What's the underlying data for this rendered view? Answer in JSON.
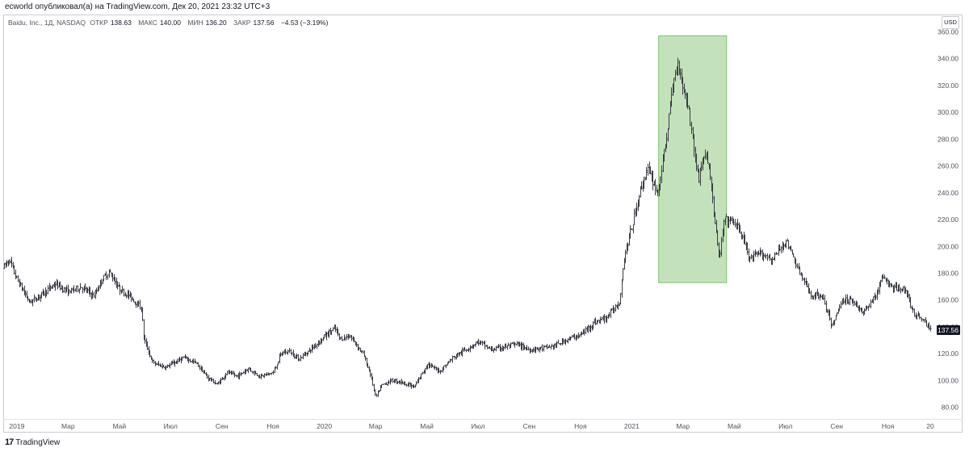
{
  "header": {
    "publish_line": "ecworld опубликовал(а) на TradingView.com, Дек 20, 2021 23:32 UTC+3"
  },
  "legend": {
    "symbol": "Baidu, Inc., 1Д, NASDAQ",
    "open_label": "ОТКР",
    "open_value": "138.63",
    "high_label": "МАКС",
    "high_value": "140.00",
    "low_label": "МИН",
    "low_value": "136.20",
    "close_label": "ЗАКР",
    "close_value": "137.56",
    "change": "−4.53 (−3.19%)"
  },
  "currency": "USD",
  "footer": {
    "logo_icon": "tradingview-logo-icon",
    "brand": "TradingView"
  },
  "colors": {
    "bar": "#3a3d45",
    "highlight_fill": "#b9ddb0",
    "highlight_stroke": "#7cbf6c",
    "last_price_bg": "#131722",
    "last_price_text": "#ffffff",
    "axis_text": "#50535e"
  },
  "chart_data": {
    "type": "ohlc",
    "title": "Baidu, Inc., 1Д, NASDAQ",
    "ylim": [
      72,
      362
    ],
    "y_ticks": [
      "80.00",
      "100.00",
      "120.00",
      "140.00",
      "160.00",
      "180.00",
      "200.00",
      "220.00",
      "240.00",
      "260.00",
      "280.00",
      "300.00",
      "320.00",
      "340.00",
      "360.00"
    ],
    "x_ticks": [
      {
        "label": "2019",
        "month": 0
      },
      {
        "label": "Мар",
        "month": 2
      },
      {
        "label": "Май",
        "month": 4
      },
      {
        "label": "Июл",
        "month": 6
      },
      {
        "label": "Сен",
        "month": 8
      },
      {
        "label": "Ноя",
        "month": 10
      },
      {
        "label": "2020",
        "month": 12
      },
      {
        "label": "Мар",
        "month": 14
      },
      {
        "label": "Май",
        "month": 16
      },
      {
        "label": "Июл",
        "month": 18
      },
      {
        "label": "Сен",
        "month": 20
      },
      {
        "label": "Ноя",
        "month": 22
      },
      {
        "label": "2021",
        "month": 24
      },
      {
        "label": "Мар",
        "month": 26
      },
      {
        "label": "Май",
        "month": 28
      },
      {
        "label": "Июл",
        "month": 30
      },
      {
        "label": "Сен",
        "month": 32
      },
      {
        "label": "Ноя",
        "month": 34
      },
      {
        "label": "20",
        "month": 35.65
      }
    ],
    "x_range_months": [
      -0.5,
      35.65
    ],
    "price_path": [
      {
        "month": -0.5,
        "price": 185
      },
      {
        "month": -0.3,
        "price": 190
      },
      {
        "month": 0.0,
        "price": 175
      },
      {
        "month": 0.5,
        "price": 158
      },
      {
        "month": 1.0,
        "price": 165
      },
      {
        "month": 1.5,
        "price": 172
      },
      {
        "month": 2.0,
        "price": 166
      },
      {
        "month": 2.5,
        "price": 170
      },
      {
        "month": 3.0,
        "price": 163
      },
      {
        "month": 3.3,
        "price": 175
      },
      {
        "month": 3.6,
        "price": 181
      },
      {
        "month": 4.0,
        "price": 168
      },
      {
        "month": 4.4,
        "price": 163
      },
      {
        "month": 4.7,
        "price": 157
      },
      {
        "month": 4.85,
        "price": 154
      },
      {
        "month": 4.95,
        "price": 131
      },
      {
        "month": 5.3,
        "price": 113
      },
      {
        "month": 5.8,
        "price": 110
      },
      {
        "month": 6.5,
        "price": 117
      },
      {
        "month": 7.0,
        "price": 113
      },
      {
        "month": 7.4,
        "price": 103
      },
      {
        "month": 7.8,
        "price": 97
      },
      {
        "month": 8.2,
        "price": 106
      },
      {
        "month": 8.6,
        "price": 103
      },
      {
        "month": 9.0,
        "price": 109
      },
      {
        "month": 9.5,
        "price": 103
      },
      {
        "month": 10.0,
        "price": 106
      },
      {
        "month": 10.3,
        "price": 120
      },
      {
        "month": 10.6,
        "price": 122
      },
      {
        "month": 11.0,
        "price": 116
      },
      {
        "month": 11.5,
        "price": 124
      },
      {
        "month": 12.0,
        "price": 133
      },
      {
        "month": 12.4,
        "price": 139
      },
      {
        "month": 12.6,
        "price": 131
      },
      {
        "month": 13.0,
        "price": 133
      },
      {
        "month": 13.5,
        "price": 120
      },
      {
        "month": 13.8,
        "price": 104
      },
      {
        "month": 14.0,
        "price": 87
      },
      {
        "month": 14.2,
        "price": 96
      },
      {
        "month": 14.6,
        "price": 100
      },
      {
        "month": 15.0,
        "price": 99
      },
      {
        "month": 15.5,
        "price": 95
      },
      {
        "month": 16.0,
        "price": 112
      },
      {
        "month": 16.5,
        "price": 107
      },
      {
        "month": 17.0,
        "price": 117
      },
      {
        "month": 17.5,
        "price": 123
      },
      {
        "month": 18.0,
        "price": 129
      },
      {
        "month": 18.5,
        "price": 123
      },
      {
        "month": 19.0,
        "price": 125
      },
      {
        "month": 19.5,
        "price": 127
      },
      {
        "month": 20.0,
        "price": 123
      },
      {
        "month": 20.5,
        "price": 124
      },
      {
        "month": 21.0,
        "price": 126
      },
      {
        "month": 21.5,
        "price": 131
      },
      {
        "month": 22.0,
        "price": 134
      },
      {
        "month": 22.5,
        "price": 143
      },
      {
        "month": 23.0,
        "price": 147
      },
      {
        "month": 23.5,
        "price": 158
      },
      {
        "month": 23.7,
        "price": 192
      },
      {
        "month": 24.0,
        "price": 215
      },
      {
        "month": 24.3,
        "price": 240
      },
      {
        "month": 24.6,
        "price": 258
      },
      {
        "month": 25.0,
        "price": 240
      },
      {
        "month": 25.2,
        "price": 262
      },
      {
        "month": 25.4,
        "price": 290
      },
      {
        "month": 25.6,
        "price": 320
      },
      {
        "month": 25.8,
        "price": 338
      },
      {
        "month": 26.0,
        "price": 318
      },
      {
        "month": 26.2,
        "price": 305
      },
      {
        "month": 26.4,
        "price": 275
      },
      {
        "month": 26.6,
        "price": 250
      },
      {
        "month": 26.8,
        "price": 268
      },
      {
        "month": 27.0,
        "price": 262
      },
      {
        "month": 27.2,
        "price": 225
      },
      {
        "month": 27.4,
        "price": 190
      },
      {
        "month": 27.6,
        "price": 220
      },
      {
        "month": 28.0,
        "price": 218
      },
      {
        "month": 28.3,
        "price": 208
      },
      {
        "month": 28.6,
        "price": 190
      },
      {
        "month": 29.0,
        "price": 195
      },
      {
        "month": 29.5,
        "price": 190
      },
      {
        "month": 30.0,
        "price": 205
      },
      {
        "month": 30.3,
        "price": 192
      },
      {
        "month": 30.6,
        "price": 178
      },
      {
        "month": 31.0,
        "price": 163
      },
      {
        "month": 31.4,
        "price": 164
      },
      {
        "month": 31.8,
        "price": 140
      },
      {
        "month": 32.2,
        "price": 160
      },
      {
        "month": 32.6,
        "price": 160
      },
      {
        "month": 33.0,
        "price": 150
      },
      {
        "month": 33.5,
        "price": 163
      },
      {
        "month": 33.8,
        "price": 178
      },
      {
        "month": 34.0,
        "price": 172
      },
      {
        "month": 34.3,
        "price": 168
      },
      {
        "month": 34.6,
        "price": 170
      },
      {
        "month": 35.0,
        "price": 150
      },
      {
        "month": 35.4,
        "price": 145
      },
      {
        "month": 35.65,
        "price": 137.56
      }
    ],
    "highlight_zone": {
      "month_from": 25.05,
      "month_to": 27.7,
      "price_from": 173,
      "price_to": 357
    },
    "last_price": {
      "value": 137.56,
      "label": "137.56"
    }
  }
}
